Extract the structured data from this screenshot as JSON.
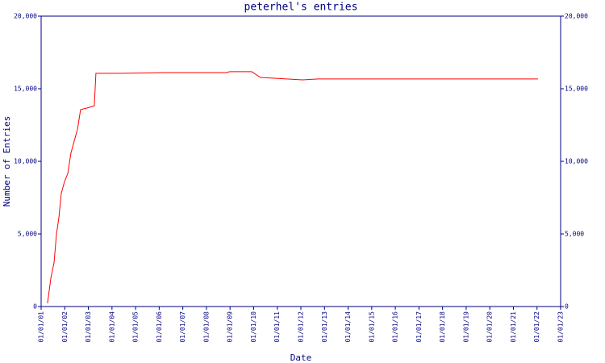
{
  "chart_data": {
    "type": "line",
    "title": "peterhel's entries",
    "x_label": "Date",
    "y_label": "Number of Entries",
    "xlim": [
      1,
      23
    ],
    "xticks": [
      {
        "value": 1,
        "label": "01/01/01"
      },
      {
        "value": 2,
        "label": "01/01/02"
      },
      {
        "value": 3,
        "label": "01/01/03"
      },
      {
        "value": 4,
        "label": "01/01/04"
      },
      {
        "value": 5,
        "label": "01/01/05"
      },
      {
        "value": 6,
        "label": "01/01/06"
      },
      {
        "value": 7,
        "label": "01/01/07"
      },
      {
        "value": 8,
        "label": "01/01/08"
      },
      {
        "value": 9,
        "label": "01/01/09"
      },
      {
        "value": 10,
        "label": "01/01/10"
      },
      {
        "value": 11,
        "label": "01/01/11"
      },
      {
        "value": 12,
        "label": "01/01/12"
      },
      {
        "value": 13,
        "label": "01/01/13"
      },
      {
        "value": 14,
        "label": "01/01/14"
      },
      {
        "value": 15,
        "label": "01/01/15"
      },
      {
        "value": 16,
        "label": "01/01/16"
      },
      {
        "value": 17,
        "label": "01/01/17"
      },
      {
        "value": 18,
        "label": "01/01/18"
      },
      {
        "value": 19,
        "label": "01/01/19"
      },
      {
        "value": 20,
        "label": "01/01/20"
      },
      {
        "value": 21,
        "label": "01/01/21"
      },
      {
        "value": 22,
        "label": "01/01/22"
      },
      {
        "value": 23,
        "label": "01/01/23"
      }
    ],
    "ylim": [
      0,
      20000
    ],
    "yticks": [
      0,
      {
        "value": 5000,
        "label": "5,000"
      },
      {
        "value": 10000,
        "label": "10,000"
      },
      {
        "value": 15000,
        "label": "15,000"
      },
      {
        "value": 20000,
        "label": "20,000"
      }
    ],
    "axis_color": "#000080",
    "series": [
      {
        "color": "#ff0000",
        "x": [
          1.27,
          1.41,
          1.55,
          1.65,
          1.75,
          1.85,
          1.99,
          2.13,
          2.26,
          2.4,
          2.54,
          2.67,
          2.95,
          3.25,
          3.32,
          4.38,
          6.09,
          8.82,
          8.99,
          9.92,
          10.29,
          10.87,
          11.39,
          12.07,
          12.75,
          16.34,
          22.04
        ],
        "values": [
          220,
          1940,
          3060,
          5000,
          6110,
          7780,
          8610,
          9170,
          10560,
          11390,
          12220,
          13560,
          13670,
          13830,
          16060,
          16060,
          16110,
          16110,
          16170,
          16170,
          15780,
          15720,
          15670,
          15610,
          15670,
          15670,
          15670
        ]
      }
    ]
  }
}
